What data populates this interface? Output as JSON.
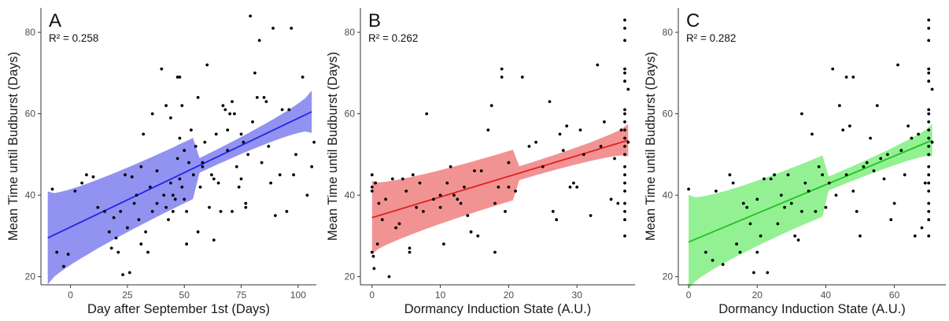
{
  "chart_data": [
    {
      "type": "scatter",
      "panel_label": "A",
      "annotation": "R² = 0.258",
      "xlabel": "Day after September 1st (Days)",
      "ylabel": "Mean Time until Budburst (Days)",
      "xlim": [
        -13,
        108
      ],
      "ylim": [
        18,
        86
      ],
      "xticks": [
        "0",
        "25",
        "50",
        "75",
        "100"
      ],
      "xtick_values": [
        0,
        25,
        50,
        75,
        100
      ],
      "yticks": [
        "20",
        "40",
        "60",
        "80"
      ],
      "ytick_values": [
        20,
        40,
        60,
        80
      ],
      "grid": false,
      "fit": {
        "x0": -10,
        "y0": 29.5,
        "x1": 106,
        "y1": 60.5,
        "ci_left": 5.7,
        "ci_mid": 1.8,
        "ci_right": 5.2,
        "color": "#2525e8",
        "band_color": "#7f7fee"
      },
      "points": [
        [
          -8,
          41.5
        ],
        [
          -6,
          26
        ],
        [
          -3,
          22.5
        ],
        [
          -1,
          25.5
        ],
        [
          2,
          41
        ],
        [
          5,
          43
        ],
        [
          7,
          45
        ],
        [
          10,
          44.5
        ],
        [
          12,
          37
        ],
        [
          15,
          36
        ],
        [
          17,
          31
        ],
        [
          18,
          27
        ],
        [
          19,
          34.5
        ],
        [
          20,
          29.5
        ],
        [
          21,
          26
        ],
        [
          22,
          36
        ],
        [
          23,
          20.5
        ],
        [
          24,
          45
        ],
        [
          25,
          32
        ],
        [
          26,
          21
        ],
        [
          27,
          44.5
        ],
        [
          28,
          38
        ],
        [
          29,
          40
        ],
        [
          30,
          34
        ],
        [
          31,
          28
        ],
        [
          31,
          47
        ],
        [
          32,
          55
        ],
        [
          33,
          31
        ],
        [
          34,
          26
        ],
        [
          35,
          42
        ],
        [
          36,
          60
        ],
        [
          36,
          36
        ],
        [
          38,
          38
        ],
        [
          38,
          46
        ],
        [
          40,
          71
        ],
        [
          41,
          40
        ],
        [
          42,
          62
        ],
        [
          42,
          37
        ],
        [
          43,
          34
        ],
        [
          44,
          59
        ],
        [
          44,
          43
        ],
        [
          45,
          40
        ],
        [
          45,
          36
        ],
        [
          46,
          39
        ],
        [
          47,
          69
        ],
        [
          47,
          49
        ],
        [
          48,
          69
        ],
        [
          48,
          54
        ],
        [
          48,
          44
        ],
        [
          49,
          62
        ],
        [
          49,
          42
        ],
        [
          50,
          51
        ],
        [
          50,
          39
        ],
        [
          51,
          36
        ],
        [
          51,
          28
        ],
        [
          52,
          48
        ],
        [
          53,
          56
        ],
        [
          54,
          45
        ],
        [
          55,
          52
        ],
        [
          56,
          64
        ],
        [
          56,
          31
        ],
        [
          57,
          42
        ],
        [
          58,
          47
        ],
        [
          58,
          48
        ],
        [
          59,
          53
        ],
        [
          60,
          72
        ],
        [
          61,
          37
        ],
        [
          62,
          45
        ],
        [
          63,
          29
        ],
        [
          63,
          44
        ],
        [
          64,
          55
        ],
        [
          65,
          43
        ],
        [
          66,
          36
        ],
        [
          67,
          62
        ],
        [
          68,
          61
        ],
        [
          69,
          56
        ],
        [
          69,
          51
        ],
        [
          70,
          60
        ],
        [
          71,
          36
        ],
        [
          71,
          63
        ],
        [
          72,
          60
        ],
        [
          73,
          47
        ],
        [
          74,
          42
        ],
        [
          75,
          55
        ],
        [
          75,
          44
        ],
        [
          76,
          53
        ],
        [
          77,
          38
        ],
        [
          77,
          37
        ],
        [
          78,
          50
        ],
        [
          79,
          84
        ],
        [
          80,
          58
        ],
        [
          81,
          70
        ],
        [
          82,
          64
        ],
        [
          83,
          78
        ],
        [
          84,
          48
        ],
        [
          85,
          64
        ],
        [
          86,
          63
        ],
        [
          87,
          52
        ],
        [
          88,
          43
        ],
        [
          89,
          81
        ],
        [
          90,
          35
        ],
        [
          92,
          45
        ],
        [
          93,
          61
        ],
        [
          95,
          36
        ],
        [
          96,
          61
        ],
        [
          97,
          81
        ],
        [
          98,
          45
        ],
        [
          99,
          50
        ],
        [
          102,
          69
        ],
        [
          104,
          40
        ],
        [
          106,
          47
        ],
        [
          107,
          53
        ]
      ]
    },
    {
      "type": "scatter",
      "panel_label": "B",
      "annotation": "R² = 0.262",
      "xlabel": "Dormancy Induction State (A.U.)",
      "ylabel": "Mean Time until Budburst (Days)",
      "xlim": [
        -1.7,
        38.5
      ],
      "ylim": [
        18,
        86
      ],
      "xticks": [
        "0",
        "10",
        "20",
        "30"
      ],
      "xtick_values": [
        0,
        10,
        20,
        30
      ],
      "yticks": [
        "20",
        "40",
        "60",
        "80"
      ],
      "ytick_values": [
        20,
        40,
        60,
        80
      ],
      "grid": false,
      "fit": {
        "x0": 0,
        "y0": 34.5,
        "x1": 37.5,
        "y1": 53.5,
        "ci_left": 4.5,
        "ci_mid": 1.7,
        "ci_right": 4.0,
        "color": "#e02020",
        "band_color": "#f08080"
      },
      "points": [
        [
          0,
          45
        ],
        [
          0,
          42
        ],
        [
          0,
          41
        ],
        [
          0,
          26
        ],
        [
          0.2,
          25
        ],
        [
          0.3,
          22
        ],
        [
          0.5,
          43
        ],
        [
          0.8,
          28
        ],
        [
          1,
          38
        ],
        [
          1.5,
          34
        ],
        [
          2,
          39
        ],
        [
          2.5,
          20
        ],
        [
          3,
          44
        ],
        [
          3.5,
          32
        ],
        [
          4,
          33
        ],
        [
          4.5,
          44
        ],
        [
          5,
          41
        ],
        [
          5.5,
          27
        ],
        [
          5.5,
          26
        ],
        [
          6,
          45
        ],
        [
          6.5,
          37
        ],
        [
          7,
          43
        ],
        [
          7.5,
          36
        ],
        [
          8,
          60
        ],
        [
          9,
          39
        ],
        [
          10,
          40
        ],
        [
          10,
          37
        ],
        [
          10.5,
          28
        ],
        [
          11,
          43
        ],
        [
          11.5,
          47
        ],
        [
          12,
          40
        ],
        [
          12.5,
          39
        ],
        [
          13,
          38
        ],
        [
          13.5,
          42
        ],
        [
          14,
          35
        ],
        [
          14.5,
          31
        ],
        [
          15,
          46
        ],
        [
          15.5,
          30
        ],
        [
          16,
          46
        ],
        [
          17,
          56
        ],
        [
          17.5,
          62
        ],
        [
          18,
          38
        ],
        [
          18,
          26
        ],
        [
          18.5,
          42
        ],
        [
          19,
          71
        ],
        [
          19,
          69
        ],
        [
          19.5,
          36
        ],
        [
          20,
          42
        ],
        [
          20,
          48
        ],
        [
          21,
          41
        ],
        [
          22,
          69
        ],
        [
          23,
          52
        ],
        [
          24,
          53
        ],
        [
          25,
          47
        ],
        [
          26,
          63
        ],
        [
          26.5,
          36
        ],
        [
          27,
          34
        ],
        [
          27.5,
          55
        ],
        [
          28,
          51
        ],
        [
          28.5,
          57
        ],
        [
          29,
          42
        ],
        [
          29.5,
          43
        ],
        [
          30,
          42
        ],
        [
          30.5,
          56
        ],
        [
          31,
          50
        ],
        [
          32,
          35
        ],
        [
          33,
          72
        ],
        [
          33.5,
          52
        ],
        [
          34,
          58
        ],
        [
          35,
          39
        ],
        [
          35.5,
          49
        ],
        [
          36,
          38
        ],
        [
          36.5,
          56
        ],
        [
          37,
          83
        ],
        [
          37,
          81
        ],
        [
          37,
          78
        ],
        [
          37,
          71
        ],
        [
          37,
          70
        ],
        [
          37,
          68
        ],
        [
          37,
          61
        ],
        [
          37,
          60
        ],
        [
          37,
          58
        ],
        [
          37,
          56
        ],
        [
          37,
          54
        ],
        [
          37,
          52
        ],
        [
          37,
          50
        ],
        [
          37,
          47
        ],
        [
          37,
          45
        ],
        [
          37,
          43
        ],
        [
          37,
          41
        ],
        [
          37,
          38
        ],
        [
          37,
          36
        ],
        [
          37,
          34
        ],
        [
          37,
          30
        ],
        [
          37.5,
          66
        ],
        [
          37.5,
          53
        ]
      ]
    },
    {
      "type": "scatter",
      "panel_label": "C",
      "annotation": "R² = 0.282",
      "xlabel": "Dormancy Induction State (A.U.)",
      "ylabel": "Mean Time until Budburst (Days)",
      "xlim": [
        -3,
        75
      ],
      "ylim": [
        18,
        86
      ],
      "xticks": [
        "0",
        "20",
        "40",
        "60"
      ],
      "xtick_values": [
        0,
        20,
        40,
        60
      ],
      "yticks": [
        "20",
        "40",
        "60",
        "80"
      ],
      "ytick_values": [
        20,
        40,
        60,
        80
      ],
      "grid": false,
      "fit": {
        "x0": 0,
        "y0": 28.5,
        "x1": 71,
        "y1": 53.5,
        "ci_left": 5.8,
        "ci_mid": 1.7,
        "ci_right": 4.0,
        "color": "#20c020",
        "band_color": "#80ee80"
      },
      "points": [
        [
          0,
          41.5
        ],
        [
          5,
          26
        ],
        [
          7,
          24
        ],
        [
          8,
          41
        ],
        [
          10,
          23
        ],
        [
          12,
          45
        ],
        [
          13,
          43
        ],
        [
          14,
          28
        ],
        [
          15,
          26
        ],
        [
          16,
          38
        ],
        [
          17,
          37
        ],
        [
          18,
          33
        ],
        [
          19,
          21
        ],
        [
          20,
          39
        ],
        [
          20,
          26
        ],
        [
          21,
          30
        ],
        [
          22,
          44
        ],
        [
          23,
          21
        ],
        [
          24,
          44
        ],
        [
          25,
          45
        ],
        [
          26,
          33
        ],
        [
          27,
          40
        ],
        [
          28,
          37
        ],
        [
          29,
          45
        ],
        [
          30,
          38
        ],
        [
          31,
          30
        ],
        [
          32,
          29
        ],
        [
          33,
          60
        ],
        [
          33,
          36
        ],
        [
          34,
          43
        ],
        [
          35,
          41
        ],
        [
          36,
          55
        ],
        [
          37,
          36
        ],
        [
          38,
          47
        ],
        [
          39,
          45
        ],
        [
          40,
          37
        ],
        [
          41,
          43
        ],
        [
          42,
          71
        ],
        [
          43,
          40
        ],
        [
          44,
          62
        ],
        [
          45,
          56
        ],
        [
          46,
          45
        ],
        [
          46,
          69
        ],
        [
          47,
          57
        ],
        [
          48,
          69
        ],
        [
          48,
          41
        ],
        [
          49,
          36
        ],
        [
          50,
          30
        ],
        [
          51,
          47
        ],
        [
          52,
          48
        ],
        [
          53,
          54
        ],
        [
          54,
          46
        ],
        [
          55,
          62
        ],
        [
          56,
          49
        ],
        [
          57,
          44
        ],
        [
          58,
          50
        ],
        [
          59,
          34
        ],
        [
          60,
          38
        ],
        [
          61,
          72
        ],
        [
          62,
          51
        ],
        [
          63,
          45
        ],
        [
          64,
          57
        ],
        [
          65,
          54
        ],
        [
          66,
          30
        ],
        [
          67,
          55
        ],
        [
          68,
          32
        ],
        [
          69,
          43
        ],
        [
          70,
          83
        ],
        [
          70,
          81
        ],
        [
          70,
          78
        ],
        [
          70,
          71
        ],
        [
          70,
          70
        ],
        [
          70,
          68
        ],
        [
          70,
          61
        ],
        [
          70,
          60
        ],
        [
          70,
          58
        ],
        [
          70,
          56
        ],
        [
          70,
          54
        ],
        [
          70,
          52
        ],
        [
          70,
          50
        ],
        [
          70,
          47
        ],
        [
          70,
          45
        ],
        [
          70,
          43
        ],
        [
          70,
          41
        ],
        [
          70,
          38
        ],
        [
          70,
          36
        ],
        [
          70,
          34
        ],
        [
          70,
          30
        ],
        [
          71,
          66
        ],
        [
          71,
          53
        ]
      ]
    }
  ]
}
